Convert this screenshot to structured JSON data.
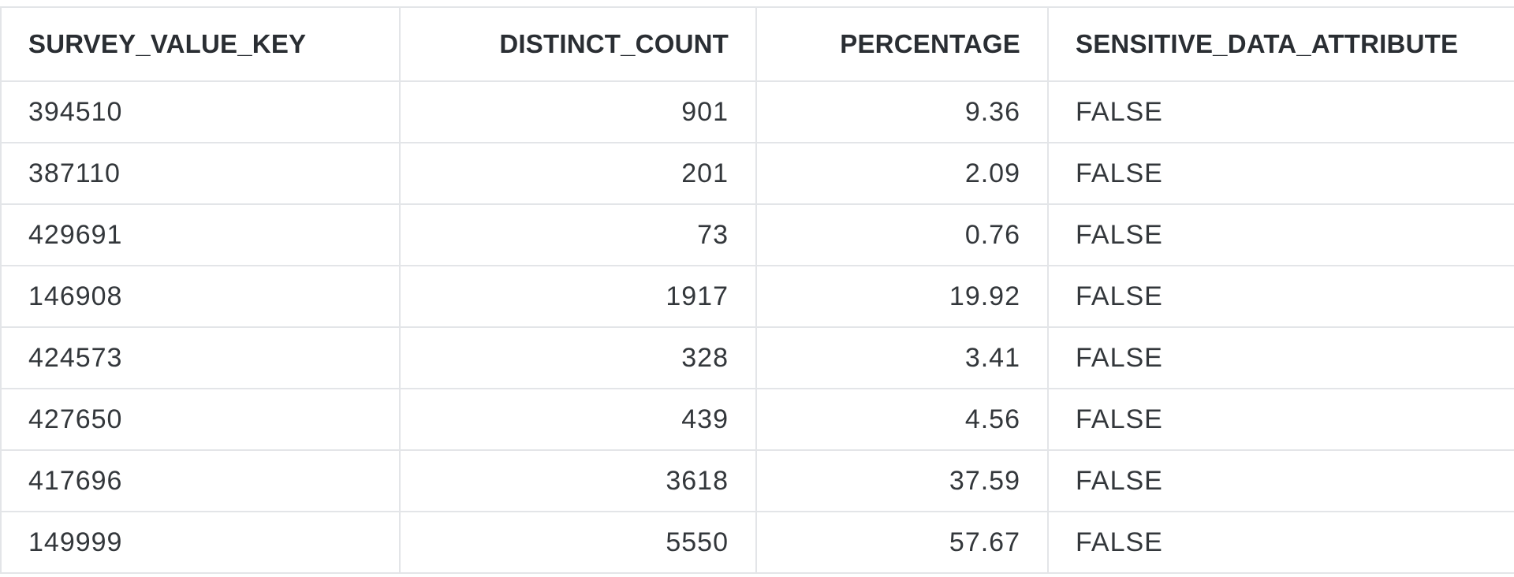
{
  "table": {
    "columns": [
      {
        "key": "survey_value_key",
        "label": "SURVEY_VALUE_KEY",
        "align": "left"
      },
      {
        "key": "distinct_count",
        "label": "DISTINCT_COUNT",
        "align": "right"
      },
      {
        "key": "percentage",
        "label": "PERCENTAGE",
        "align": "right"
      },
      {
        "key": "sensitive_data_attribute",
        "label": "SENSITIVE_DATA_ATTRIBUTE",
        "align": "left"
      }
    ],
    "rows": [
      {
        "survey_value_key": "394510",
        "distinct_count": "901",
        "percentage": "9.36",
        "sensitive_data_attribute": "FALSE"
      },
      {
        "survey_value_key": "387110",
        "distinct_count": "201",
        "percentage": "2.09",
        "sensitive_data_attribute": "FALSE"
      },
      {
        "survey_value_key": "429691",
        "distinct_count": "73",
        "percentage": "0.76",
        "sensitive_data_attribute": "FALSE"
      },
      {
        "survey_value_key": "146908",
        "distinct_count": "1917",
        "percentage": "19.92",
        "sensitive_data_attribute": "FALSE"
      },
      {
        "survey_value_key": "424573",
        "distinct_count": "328",
        "percentage": "3.41",
        "sensitive_data_attribute": "FALSE"
      },
      {
        "survey_value_key": "427650",
        "distinct_count": "439",
        "percentage": "4.56",
        "sensitive_data_attribute": "FALSE"
      },
      {
        "survey_value_key": "417696",
        "distinct_count": "3618",
        "percentage": "37.59",
        "sensitive_data_attribute": "FALSE"
      },
      {
        "survey_value_key": "149999",
        "distinct_count": "5550",
        "percentage": "57.67",
        "sensitive_data_attribute": "FALSE"
      }
    ]
  },
  "colors": {
    "background": "#ffffff",
    "grid_line": "#e3e5e8",
    "header_text": "#2a2e33",
    "cell_text": "#33373b"
  }
}
